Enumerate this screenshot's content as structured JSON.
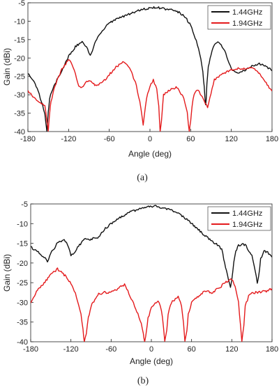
{
  "chart_data": [
    {
      "type": "line",
      "caption": "(a)",
      "xlabel": "Angle (deg)",
      "ylabel": "Gain (dBi)",
      "xlim": [
        -180,
        180
      ],
      "ylim": [
        -40,
        -5
      ],
      "xticks": [
        -180,
        -120,
        -60,
        0,
        60,
        120,
        180
      ],
      "yticks": [
        -5,
        -10,
        -15,
        -20,
        -25,
        -30,
        -35,
        -40
      ],
      "grid": false,
      "legend_position": "top-right",
      "series": [
        {
          "name": "1.44GHz",
          "color": "#111111",
          "x": [
            -180,
            -172,
            -165,
            -160,
            -155,
            -152,
            -150,
            -148,
            -145,
            -140,
            -130,
            -120,
            -110,
            -100,
            -92,
            -88,
            -80,
            -70,
            -60,
            -50,
            -40,
            -30,
            -20,
            -10,
            0,
            10,
            20,
            30,
            40,
            50,
            60,
            65,
            70,
            75,
            78,
            80,
            82,
            83,
            84,
            86,
            90,
            95,
            100,
            105,
            110,
            115,
            120,
            125,
            130,
            140,
            150,
            160,
            170,
            180
          ],
          "y": [
            -24,
            -26,
            -29,
            -32,
            -35,
            -40,
            -35,
            -31,
            -29,
            -27,
            -23.5,
            -19.5,
            -17,
            -15.5,
            -17.5,
            -19.5,
            -15.5,
            -12.5,
            -10.5,
            -9.5,
            -8.8,
            -8,
            -7.3,
            -6.8,
            -6.4,
            -6.3,
            -6.6,
            -6.9,
            -7.3,
            -8.5,
            -11,
            -13.5,
            -16.5,
            -20,
            -24,
            -28,
            -33,
            -31,
            -27,
            -22.5,
            -19,
            -16.5,
            -15.8,
            -16.5,
            -18,
            -20.5,
            -23,
            -23.8,
            -24,
            -23.5,
            -22.2,
            -21.5,
            -22,
            -23.5
          ]
        },
        {
          "name": "1.94GHz",
          "color": "#e41a1c",
          "x": [
            -180,
            -170,
            -160,
            -155,
            -152,
            -150,
            -148,
            -146,
            -140,
            -130,
            -120,
            -115,
            -110,
            -105,
            -100,
            -95,
            -90,
            -80,
            -70,
            -60,
            -50,
            -40,
            -30,
            -20,
            -15,
            -10,
            -5,
            0,
            5,
            10,
            13,
            15,
            17,
            20,
            30,
            40,
            50,
            55,
            58,
            60,
            62,
            65,
            70,
            80,
            85,
            90,
            95,
            100,
            110,
            120,
            130,
            140,
            150,
            160,
            170,
            180
          ],
          "y": [
            -29,
            -31,
            -32.5,
            -33,
            -37,
            -40,
            -35,
            -32,
            -27.5,
            -23,
            -20.5,
            -21.5,
            -24.5,
            -27.5,
            -28,
            -26.5,
            -26,
            -27.5,
            -26.8,
            -24.5,
            -22.5,
            -21.2,
            -22.5,
            -27.5,
            -32,
            -38,
            -31,
            -27.5,
            -26,
            -28.5,
            -33,
            -40,
            -37,
            -30,
            -28.5,
            -28,
            -31,
            -35,
            -40,
            -37,
            -33,
            -30,
            -28.5,
            -31.5,
            -33.5,
            -29.5,
            -26,
            -25.2,
            -24,
            -23.2,
            -22.8,
            -23,
            -22.5,
            -24,
            -26.5,
            -29
          ]
        }
      ]
    },
    {
      "type": "line",
      "caption": "(b)",
      "xlabel": "Angle (deg)",
      "ylabel": "Gain (dBi)",
      "xlim": [
        -180,
        180
      ],
      "ylim": [
        -40,
        -5
      ],
      "xticks": [
        -180,
        -120,
        -60,
        0,
        60,
        120,
        180
      ],
      "yticks": [
        -5,
        -10,
        -15,
        -20,
        -25,
        -30,
        -35,
        -40
      ],
      "grid": false,
      "legend_position": "top-right",
      "series": [
        {
          "name": "1.44GHz",
          "color": "#111111",
          "x": [
            -180,
            -170,
            -160,
            -155,
            -150,
            -140,
            -130,
            -125,
            -120,
            -115,
            -110,
            -100,
            -90,
            -80,
            -70,
            -60,
            -50,
            -40,
            -30,
            -20,
            -10,
            0,
            10,
            20,
            30,
            40,
            50,
            60,
            70,
            80,
            90,
            100,
            105,
            108,
            112,
            115,
            118,
            120,
            123,
            126,
            130,
            140,
            150,
            155,
            158,
            160,
            163,
            168,
            175,
            180
          ],
          "y": [
            -16,
            -17,
            -18.5,
            -19.5,
            -17.5,
            -15,
            -14,
            -15.5,
            -18,
            -17.5,
            -16,
            -14,
            -14,
            -13.5,
            -11.5,
            -10,
            -8.8,
            -7.8,
            -7,
            -6.5,
            -5.8,
            -5.5,
            -5.7,
            -6,
            -6.5,
            -7.5,
            -8.5,
            -10,
            -11.5,
            -13,
            -14.5,
            -15.5,
            -16.5,
            -19,
            -22,
            -24,
            -26,
            -24,
            -20,
            -17,
            -15.5,
            -15.3,
            -18,
            -22,
            -25,
            -23.5,
            -19,
            -17,
            -17.5,
            -18.5
          ]
        },
        {
          "name": "1.94GHz",
          "color": "#e41a1c",
          "x": [
            -180,
            -170,
            -160,
            -150,
            -140,
            -130,
            -120,
            -115,
            -110,
            -105,
            -102,
            -100,
            -97,
            -94,
            -90,
            -80,
            -70,
            -60,
            -50,
            -40,
            -35,
            -30,
            -25,
            -20,
            -15,
            -12,
            -10,
            -7,
            -5,
            0,
            10,
            15,
            18,
            20,
            23,
            25,
            30,
            40,
            45,
            48,
            50,
            53,
            55,
            60,
            70,
            80,
            90,
            100,
            110,
            120,
            125,
            130,
            133,
            135,
            138,
            140,
            145,
            150,
            160,
            170,
            180
          ],
          "y": [
            -30,
            -27,
            -25,
            -23,
            -21.5,
            -23,
            -25,
            -27,
            -29.5,
            -33,
            -37,
            -40,
            -38,
            -34,
            -31,
            -28,
            -27.5,
            -27.5,
            -26.5,
            -25.5,
            -27,
            -29,
            -31,
            -33,
            -35.5,
            -38,
            -40,
            -37,
            -34,
            -31.5,
            -29.5,
            -32,
            -36,
            -40,
            -37,
            -33,
            -30,
            -28.5,
            -31,
            -35,
            -40,
            -37,
            -33,
            -30,
            -28.5,
            -27,
            -27.5,
            -26.5,
            -25,
            -24,
            -26,
            -30,
            -36,
            -40,
            -36,
            -31,
            -28.5,
            -27.5,
            -27.5,
            -27.2,
            -26.5
          ]
        }
      ]
    }
  ]
}
